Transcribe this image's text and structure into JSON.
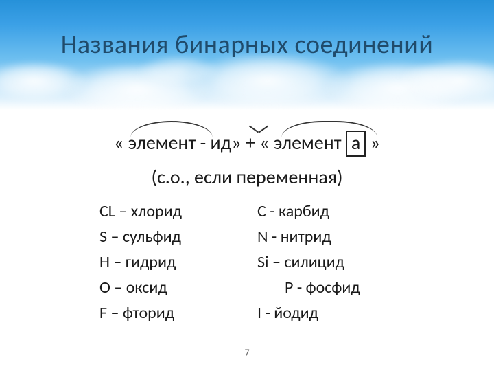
{
  "title": "Названия бинарных соединений",
  "formula": {
    "open1": "« ",
    "word1": "элемент",
    "sep": " - ",
    "suffix": "ид",
    "close1": "»",
    "plus": " + ",
    "open2": "« ",
    "word2": "элемент",
    "space2": " ",
    "boxed": "а",
    "close2": " »"
  },
  "subtitle": "(с.о., если переменная)",
  "examples": {
    "left": [
      "CL – хлорид",
      "S – сульфид",
      "H – гидрид",
      "O – оксид",
      "F – фторид"
    ],
    "right": [
      "C - карбид",
      "N - нитрид",
      "Si – силицид",
      "P - фосфид",
      "I - йодид"
    ]
  },
  "page_number": "7",
  "colors": {
    "title": "#204b6b",
    "text": "#1a1a1a",
    "background": "#ffffff"
  }
}
